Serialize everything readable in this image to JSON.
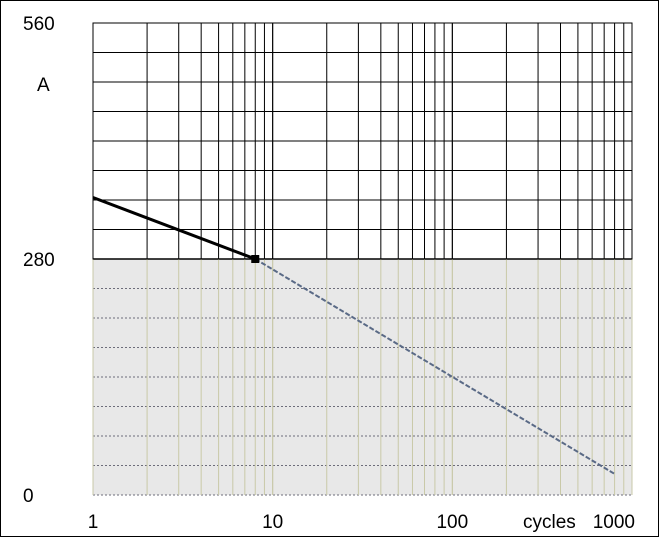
{
  "chart_data": {
    "type": "line",
    "title": "",
    "xlabel": "cycles",
    "ylabel": "A",
    "x_scale": "log",
    "xlim": [
      1,
      1000
    ],
    "ylim": [
      0,
      560
    ],
    "x_ticks": [
      {
        "value": 1,
        "label": "1"
      },
      {
        "value": 10,
        "label": "10"
      },
      {
        "value": 100,
        "label": "100"
      },
      {
        "value": 1000,
        "label": "1000"
      }
    ],
    "y_ticks": [
      {
        "value": 0,
        "label": "0"
      },
      {
        "value": 280,
        "label": "280"
      },
      {
        "value": 560,
        "label": "560"
      }
    ],
    "grid": true,
    "y_grid_step": 35,
    "lower_half_shaded": true,
    "shade_color": "#e8e8e8",
    "series": [
      {
        "name": "",
        "color": "#000000",
        "points": [
          [
            1,
            353
          ],
          [
            8,
            280
          ]
        ]
      },
      {
        "name": "",
        "color": "#5a6a86",
        "points": [
          [
            8,
            280
          ],
          [
            800,
            25
          ]
        ]
      }
    ]
  }
}
